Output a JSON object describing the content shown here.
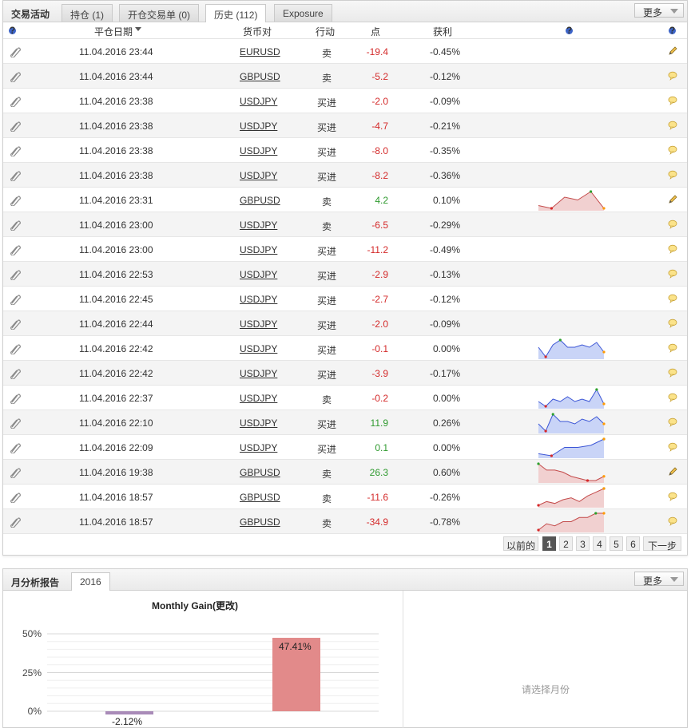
{
  "trade_panel": {
    "title": "交易活动",
    "tabs": [
      "持仓 (1)",
      "开仓交易单 (0)",
      "历史 (112)",
      "Exposure"
    ],
    "more_label": "更多",
    "columns": {
      "close_date": "平仓日期",
      "pair": "货币对",
      "action": "行动",
      "points": "点",
      "profit": "获利"
    },
    "rows": [
      {
        "date": "11.04.2016 23:44",
        "pair": "EURUSD",
        "action": "卖",
        "points": "-19.4",
        "pl": "-0.45%",
        "note_icon": "pencil-icon"
      },
      {
        "date": "11.04.2016 23:44",
        "pair": "GBPUSD",
        "action": "卖",
        "points": "-5.2",
        "pl": "-0.12%",
        "note_icon": "comment-icon"
      },
      {
        "date": "11.04.2016 23:38",
        "pair": "USDJPY",
        "action": "买进",
        "points": "-2.0",
        "pl": "-0.09%",
        "note_icon": "comment-icon"
      },
      {
        "date": "11.04.2016 23:38",
        "pair": "USDJPY",
        "action": "买进",
        "points": "-4.7",
        "pl": "-0.21%",
        "note_icon": "comment-icon"
      },
      {
        "date": "11.04.2016 23:38",
        "pair": "USDJPY",
        "action": "买进",
        "points": "-8.0",
        "pl": "-0.35%",
        "note_icon": "comment-icon"
      },
      {
        "date": "11.04.2016 23:38",
        "pair": "USDJPY",
        "action": "买进",
        "points": "-8.2",
        "pl": "-0.36%",
        "note_icon": "comment-icon"
      },
      {
        "date": "11.04.2016 23:31",
        "pair": "GBPUSD",
        "action": "卖",
        "points": "4.2",
        "pl": "0.10%",
        "note_icon": "pencil-icon",
        "spark": {
          "color": "red",
          "values": [
            3,
            2,
            6,
            5,
            8,
            2
          ]
        }
      },
      {
        "date": "11.04.2016 23:00",
        "pair": "USDJPY",
        "action": "卖",
        "points": "-6.5",
        "pl": "-0.29%",
        "note_icon": "comment-icon"
      },
      {
        "date": "11.04.2016 23:00",
        "pair": "USDJPY",
        "action": "买进",
        "points": "-11.2",
        "pl": "-0.49%",
        "note_icon": "comment-icon"
      },
      {
        "date": "11.04.2016 22:53",
        "pair": "USDJPY",
        "action": "买进",
        "points": "-2.9",
        "pl": "-0.13%",
        "note_icon": "comment-icon"
      },
      {
        "date": "11.04.2016 22:45",
        "pair": "USDJPY",
        "action": "买进",
        "points": "-2.7",
        "pl": "-0.12%",
        "note_icon": "comment-icon"
      },
      {
        "date": "11.04.2016 22:44",
        "pair": "USDJPY",
        "action": "买进",
        "points": "-2.0",
        "pl": "-0.09%",
        "note_icon": "comment-icon"
      },
      {
        "date": "11.04.2016 22:42",
        "pair": "USDJPY",
        "action": "买进",
        "points": "-0.1",
        "pl": "0.00%",
        "note_icon": "comment-icon",
        "spark": {
          "color": "blue",
          "values": [
            5,
            1,
            6,
            8,
            5,
            5,
            6,
            5,
            7,
            3
          ]
        }
      },
      {
        "date": "11.04.2016 22:42",
        "pair": "USDJPY",
        "action": "买进",
        "points": "-3.9",
        "pl": "-0.17%",
        "note_icon": "comment-icon"
      },
      {
        "date": "11.04.2016 22:37",
        "pair": "USDJPY",
        "action": "卖",
        "points": "-0.2",
        "pl": "0.00%",
        "note_icon": "comment-icon",
        "spark": {
          "color": "blue",
          "values": [
            3,
            1,
            4,
            3,
            5,
            3,
            4,
            3,
            8,
            2
          ]
        }
      },
      {
        "date": "11.04.2016 22:10",
        "pair": "USDJPY",
        "action": "买进",
        "points": "11.9",
        "pl": "0.26%",
        "note_icon": "comment-icon",
        "spark": {
          "color": "blue",
          "values": [
            4,
            1,
            8,
            5,
            5,
            4,
            6,
            5,
            7,
            4
          ]
        }
      },
      {
        "date": "11.04.2016 22:09",
        "pair": "USDJPY",
        "action": "买进",
        "points": "0.1",
        "pl": "0.00%",
        "note_icon": "comment-icon",
        "spark": {
          "color": "blue",
          "values": [
            3,
            2,
            6,
            6,
            7,
            10
          ]
        }
      },
      {
        "date": "11.04.2016 19:38",
        "pair": "GBPUSD",
        "action": "卖",
        "points": "26.3",
        "pl": "0.60%",
        "note_icon": "pencil-icon",
        "spark": {
          "color": "red",
          "values": [
            9,
            6,
            6,
            5,
            3,
            2,
            1,
            1,
            3
          ]
        }
      },
      {
        "date": "11.04.2016 18:57",
        "pair": "GBPUSD",
        "action": "卖",
        "points": "-11.6",
        "pl": "-0.26%",
        "note_icon": "comment-icon",
        "spark": {
          "color": "red",
          "values": [
            1,
            3,
            2,
            4,
            5,
            3,
            6,
            8,
            10
          ]
        }
      },
      {
        "date": "11.04.2016 18:57",
        "pair": "GBPUSD",
        "action": "卖",
        "points": "-34.9",
        "pl": "-0.78%",
        "note_icon": "comment-icon",
        "spark": {
          "color": "red",
          "values": [
            1,
            4,
            3,
            5,
            5,
            7,
            7,
            9,
            9
          ]
        }
      }
    ],
    "pager": {
      "prev": "以前的",
      "pages": [
        "1",
        "2",
        "3",
        "4",
        "5",
        "6"
      ],
      "current": "1",
      "next": "下一步"
    }
  },
  "monthly_panel": {
    "title": "月分析报告",
    "tabs": [
      "2016"
    ],
    "more_label": "更多",
    "select_month_hint": "请选择月份"
  },
  "chart_data": {
    "type": "bar",
    "title": "Monthly Gain(更改)",
    "categories": [
      "",
      ""
    ],
    "values": [
      -2.12,
      47.41
    ],
    "value_labels": [
      "-2.12%",
      "47.41%"
    ],
    "bar_colors": [
      "#a98bb8",
      "#e28a8a"
    ],
    "yticks": [
      "50%",
      "25%",
      "0%"
    ],
    "ylim": [
      -5,
      50
    ],
    "grid": true
  },
  "colors": {
    "negative": "#d42a2a",
    "positive": "#2f9a2f",
    "spark_blue_line": "#3c56d6",
    "spark_blue_fill": "#c9d4f7",
    "spark_red_line": "#c44b4b",
    "spark_red_fill": "#f1d0d0"
  }
}
